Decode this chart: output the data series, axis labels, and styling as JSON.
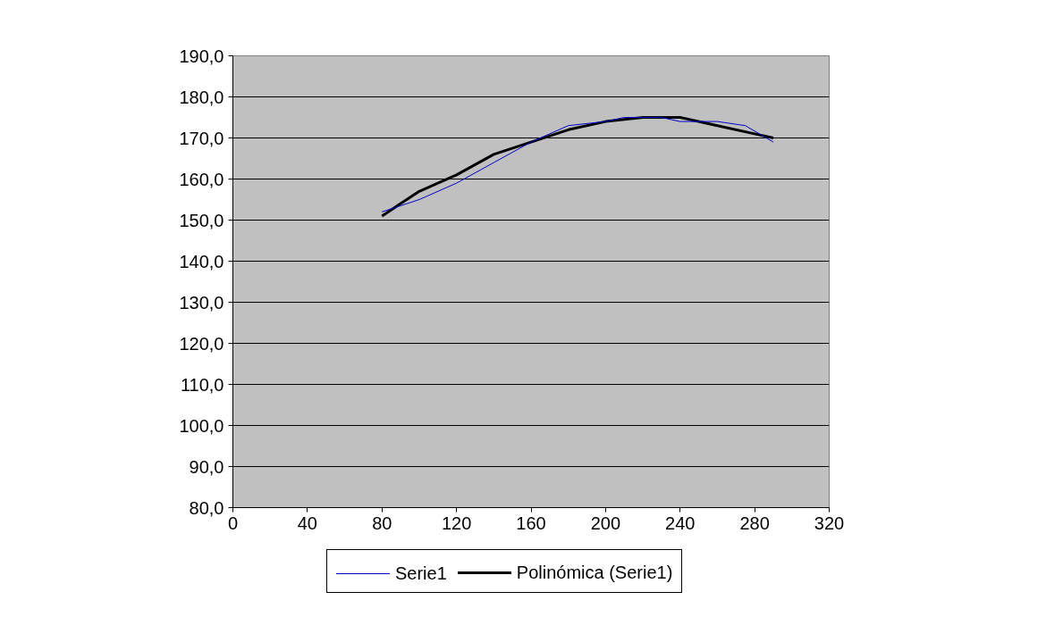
{
  "chart_data": {
    "type": "line",
    "xlim": [
      0,
      320
    ],
    "xticks": [
      0,
      40,
      80,
      120,
      160,
      200,
      240,
      280,
      320
    ],
    "ylim": [
      80,
      190
    ],
    "yticks": [
      {
        "value": 80,
        "label": "80,0"
      },
      {
        "value": 90,
        "label": "90,0"
      },
      {
        "value": 100,
        "label": "100,0"
      },
      {
        "value": 110,
        "label": "110,0"
      },
      {
        "value": 120,
        "label": "120,0"
      },
      {
        "value": 130,
        "label": "130,0"
      },
      {
        "value": 140,
        "label": "140,0"
      },
      {
        "value": 150,
        "label": "150,0"
      },
      {
        "value": 160,
        "label": "160,0"
      },
      {
        "value": 170,
        "label": "170,0"
      },
      {
        "value": 180,
        "label": "180,0"
      },
      {
        "value": 190,
        "label": "190,0"
      }
    ],
    "grid": "y",
    "legend": "bottom",
    "marker": "none",
    "line_style": "solid",
    "series": [
      {
        "name": "Serie1",
        "color": "#0000cc",
        "x": [
          80,
          100,
          120,
          140,
          160,
          180,
          200,
          210,
          230,
          240,
          260,
          275,
          290
        ],
        "values": [
          152,
          155,
          159,
          164,
          169,
          173,
          174,
          175,
          175,
          174,
          174,
          173,
          169
        ]
      },
      {
        "name": "Polinómica (Serie1)",
        "color": "#000000",
        "x": [
          80,
          90,
          100,
          120,
          140,
          160,
          180,
          200,
          220,
          240,
          260,
          280,
          290
        ],
        "values": [
          151,
          154,
          157,
          161,
          166,
          169,
          172,
          174,
          175,
          175,
          173,
          171,
          170
        ]
      }
    ]
  }
}
